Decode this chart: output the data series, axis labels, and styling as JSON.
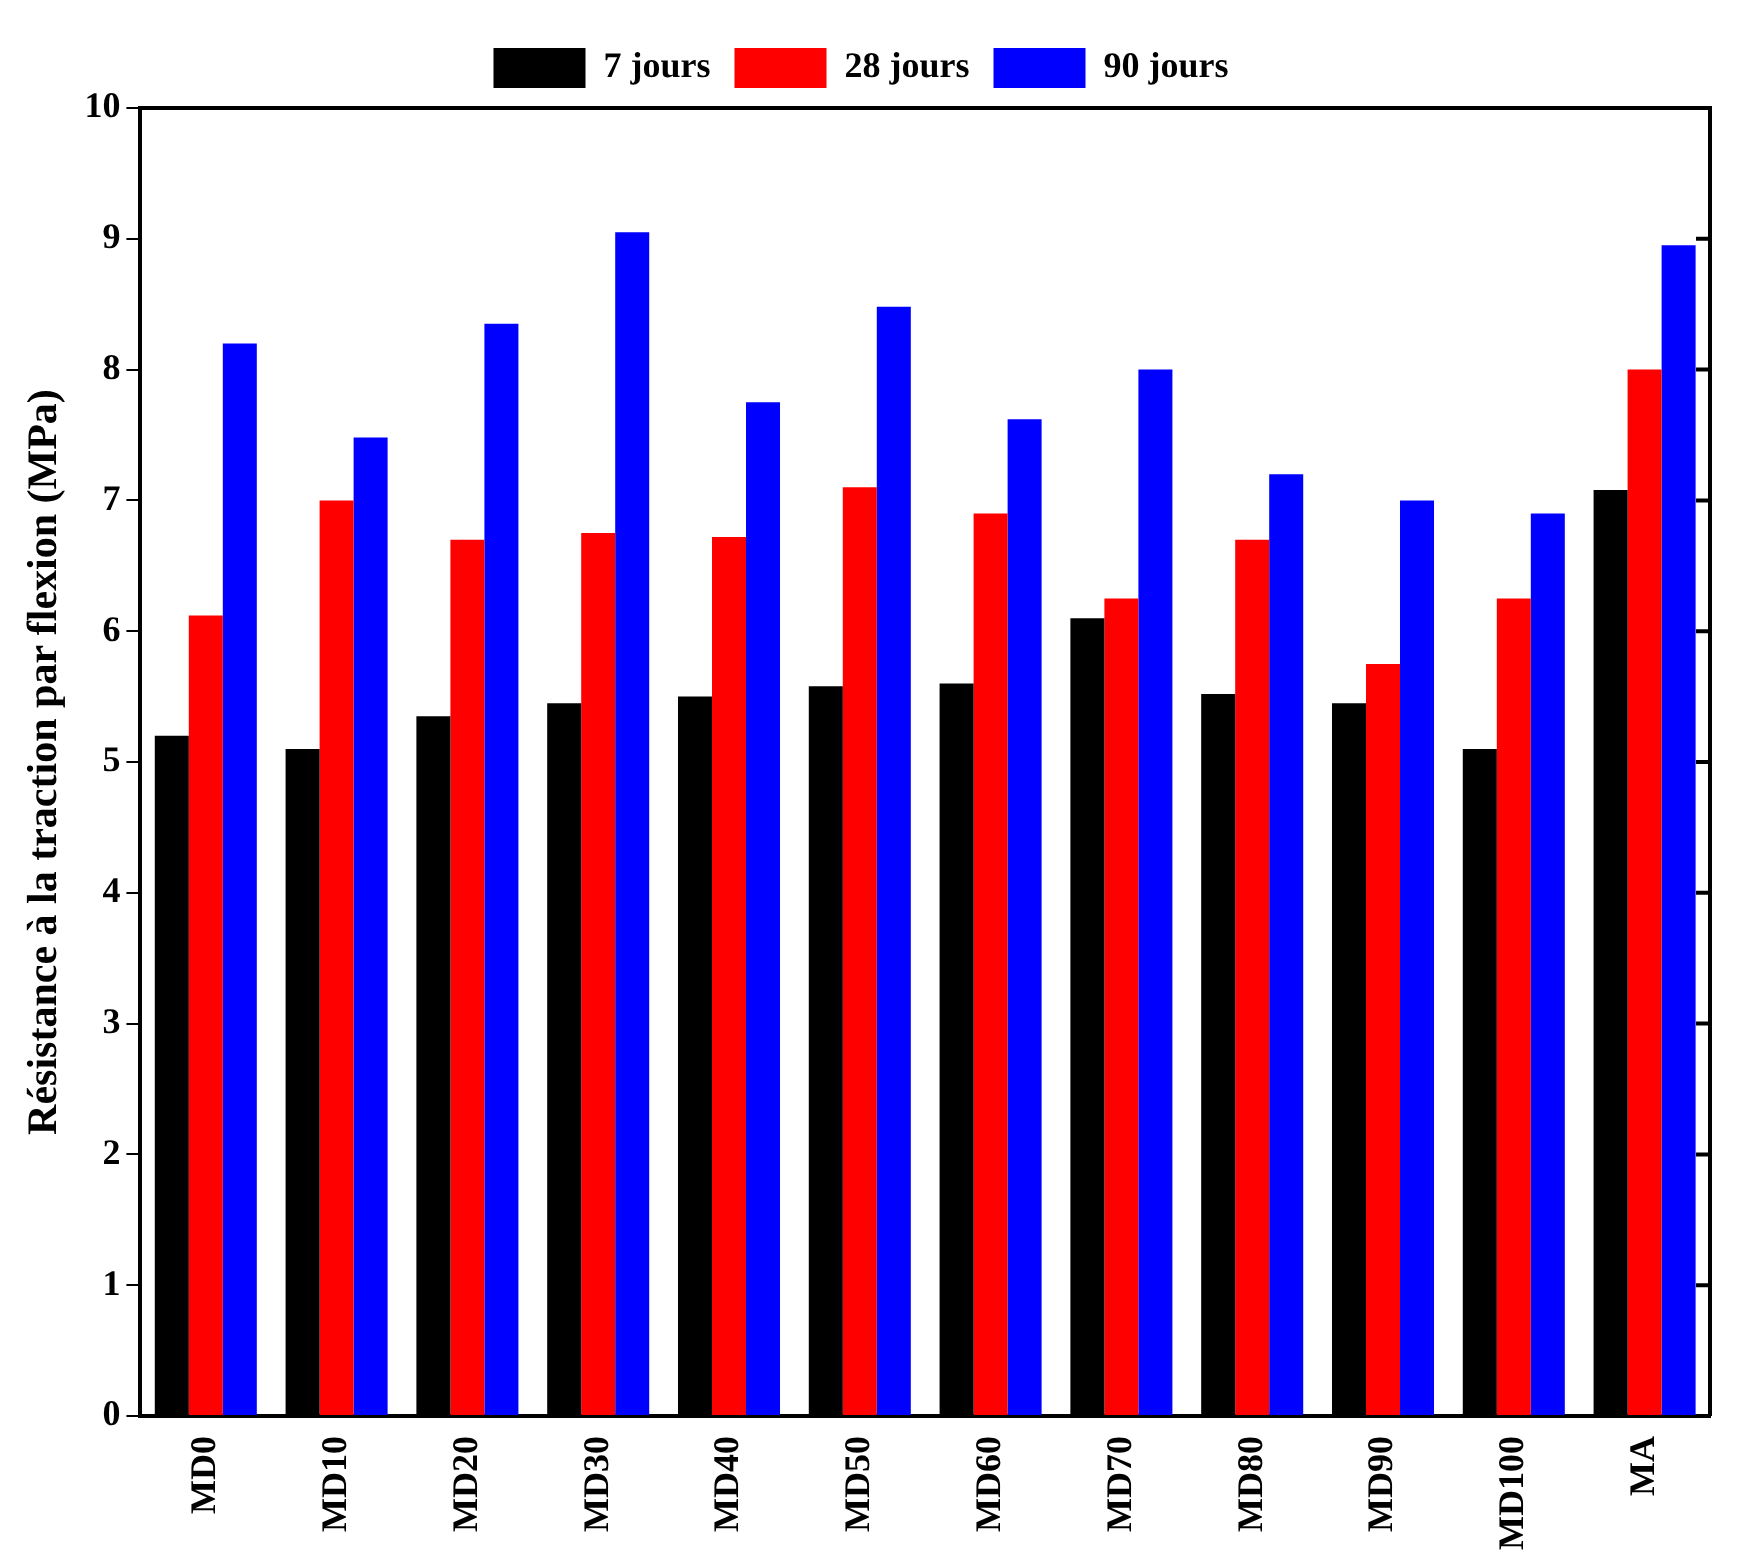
{
  "chart_data": {
    "type": "bar",
    "ylabel": "Résistance à la traction par flexion (MPa)",
    "categories": [
      "MD0",
      "MD10",
      "MD20",
      "MD30",
      "MD40",
      "MD50",
      "MD60",
      "MD70",
      "MD80",
      "MD90",
      "MD100",
      "MA"
    ],
    "series": [
      {
        "name": "7 jours",
        "color": "#000000",
        "values": [
          5.2,
          5.1,
          5.35,
          5.45,
          5.5,
          5.58,
          5.6,
          6.1,
          5.52,
          5.45,
          5.1,
          7.08
        ]
      },
      {
        "name": "28 jours",
        "color": "#ff0000",
        "values": [
          6.12,
          7.0,
          6.7,
          6.75,
          6.72,
          7.1,
          6.9,
          6.25,
          6.7,
          5.75,
          6.25,
          8.0
        ]
      },
      {
        "name": "90 jours",
        "color": "#0000ff",
        "values": [
          8.2,
          7.48,
          8.35,
          9.05,
          7.75,
          8.48,
          7.62,
          8.0,
          7.2,
          7.0,
          6.9,
          8.95
        ]
      }
    ],
    "ylim": [
      0,
      10
    ],
    "yticks": [
      0,
      1,
      2,
      3,
      4,
      5,
      6,
      7,
      8,
      9,
      10
    ],
    "grid": false,
    "legend": "top"
  }
}
